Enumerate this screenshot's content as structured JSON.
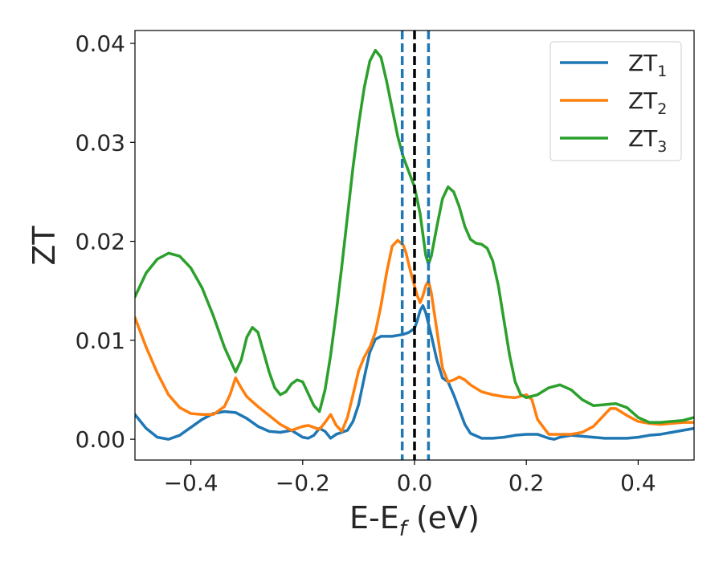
{
  "chart_data": {
    "type": "line",
    "xlabel": {
      "main": "E-E",
      "sub": "f",
      "suffix": " (eV)"
    },
    "ylabel": "ZT",
    "xlim": [
      -0.5,
      0.5
    ],
    "ylim": [
      -0.0021,
      0.0413
    ],
    "xticks": [
      -0.4,
      -0.2,
      0.0,
      0.2,
      0.4
    ],
    "xtick_labels": [
      "−0.4",
      "−0.2",
      "0.0",
      "0.2",
      "0.4"
    ],
    "yticks": [
      0.0,
      0.01,
      0.02,
      0.03,
      0.04
    ],
    "ytick_labels": [
      "0.00",
      "0.01",
      "0.02",
      "0.03",
      "0.04"
    ],
    "grid": false,
    "legend_position": "top-right",
    "vlines": [
      {
        "x": -0.022,
        "color": "#1f77b4",
        "style": "dashed"
      },
      {
        "x": 0.0,
        "color": "#000000",
        "style": "dashed"
      },
      {
        "x": 0.025,
        "color": "#1f77b4",
        "style": "dashed"
      }
    ],
    "series": [
      {
        "name": "ZT",
        "sub": "1",
        "color": "#1f77b4",
        "x": [
          -0.5,
          -0.48,
          -0.46,
          -0.44,
          -0.42,
          -0.4,
          -0.38,
          -0.36,
          -0.34,
          -0.32,
          -0.3,
          -0.28,
          -0.26,
          -0.24,
          -0.22,
          -0.2,
          -0.19,
          -0.18,
          -0.17,
          -0.16,
          -0.15,
          -0.14,
          -0.13,
          -0.12,
          -0.11,
          -0.1,
          -0.09,
          -0.08,
          -0.07,
          -0.06,
          -0.05,
          -0.04,
          -0.03,
          -0.02,
          -0.01,
          0.0,
          0.005,
          0.01,
          0.015,
          0.02,
          0.03,
          0.04,
          0.05,
          0.06,
          0.07,
          0.08,
          0.09,
          0.1,
          0.12,
          0.14,
          0.16,
          0.18,
          0.2,
          0.22,
          0.24,
          0.25,
          0.26,
          0.28,
          0.3,
          0.32,
          0.34,
          0.36,
          0.38,
          0.4,
          0.42,
          0.44,
          0.46,
          0.48,
          0.5
        ],
        "values": [
          0.0025,
          0.0011,
          0.0002,
          0.0,
          0.0004,
          0.0012,
          0.002,
          0.0026,
          0.0028,
          0.0027,
          0.0021,
          0.0013,
          0.0008,
          0.0007,
          0.0009,
          0.0002,
          0.0001,
          0.0004,
          0.0011,
          0.0008,
          0.0001,
          0.0005,
          0.0007,
          0.0009,
          0.0018,
          0.0035,
          0.0062,
          0.0088,
          0.0101,
          0.0104,
          0.0104,
          0.0104,
          0.0105,
          0.0106,
          0.0108,
          0.0112,
          0.012,
          0.013,
          0.0135,
          0.0128,
          0.0105,
          0.008,
          0.0062,
          0.0058,
          0.0045,
          0.003,
          0.0015,
          0.0006,
          0.0001,
          0.0001,
          0.0002,
          0.0004,
          0.0005,
          0.0005,
          0.0001,
          0.0,
          0.0002,
          0.0004,
          0.0003,
          0.0002,
          0.0001,
          0.0001,
          0.0001,
          0.0002,
          0.0004,
          0.0005,
          0.0007,
          0.0009,
          0.0011
        ]
      },
      {
        "name": "ZT",
        "sub": "2",
        "color": "#ff7f0e",
        "x": [
          -0.5,
          -0.48,
          -0.46,
          -0.44,
          -0.42,
          -0.4,
          -0.38,
          -0.36,
          -0.34,
          -0.33,
          -0.32,
          -0.31,
          -0.3,
          -0.28,
          -0.26,
          -0.24,
          -0.22,
          -0.2,
          -0.19,
          -0.18,
          -0.17,
          -0.16,
          -0.15,
          -0.14,
          -0.13,
          -0.12,
          -0.11,
          -0.1,
          -0.09,
          -0.08,
          -0.07,
          -0.06,
          -0.05,
          -0.04,
          -0.03,
          -0.02,
          -0.015,
          -0.01,
          -0.005,
          0.0,
          0.005,
          0.01,
          0.015,
          0.02,
          0.025,
          0.03,
          0.04,
          0.05,
          0.06,
          0.07,
          0.08,
          0.09,
          0.1,
          0.12,
          0.14,
          0.16,
          0.18,
          0.2,
          0.21,
          0.22,
          0.24,
          0.26,
          0.28,
          0.3,
          0.32,
          0.34,
          0.35,
          0.36,
          0.38,
          0.4,
          0.42,
          0.44,
          0.46,
          0.48,
          0.5
        ],
        "values": [
          0.0123,
          0.0093,
          0.0067,
          0.0045,
          0.0032,
          0.0026,
          0.0025,
          0.0025,
          0.0033,
          0.0045,
          0.0062,
          0.0052,
          0.0043,
          0.0033,
          0.0024,
          0.0015,
          0.0009,
          0.0013,
          0.0014,
          0.0012,
          0.001,
          0.0017,
          0.0025,
          0.0014,
          0.0008,
          0.0022,
          0.0045,
          0.0069,
          0.0083,
          0.0093,
          0.0108,
          0.0135,
          0.0168,
          0.0195,
          0.0201,
          0.0196,
          0.0188,
          0.0176,
          0.0165,
          0.0155,
          0.0145,
          0.0138,
          0.0145,
          0.0155,
          0.016,
          0.0148,
          0.011,
          0.0072,
          0.0058,
          0.006,
          0.0063,
          0.006,
          0.0055,
          0.0048,
          0.0045,
          0.0043,
          0.0042,
          0.0045,
          0.004,
          0.002,
          0.0005,
          0.0005,
          0.0005,
          0.0007,
          0.0013,
          0.0025,
          0.0031,
          0.0031,
          0.0024,
          0.0018,
          0.0016,
          0.0015,
          0.0016,
          0.0017,
          0.0017
        ]
      },
      {
        "name": "ZT",
        "sub": "3",
        "color": "#2ca02c",
        "x": [
          -0.5,
          -0.48,
          -0.46,
          -0.44,
          -0.42,
          -0.4,
          -0.38,
          -0.36,
          -0.34,
          -0.32,
          -0.31,
          -0.3,
          -0.29,
          -0.28,
          -0.27,
          -0.26,
          -0.25,
          -0.24,
          -0.23,
          -0.22,
          -0.21,
          -0.2,
          -0.19,
          -0.18,
          -0.17,
          -0.16,
          -0.15,
          -0.14,
          -0.13,
          -0.12,
          -0.11,
          -0.1,
          -0.09,
          -0.08,
          -0.07,
          -0.06,
          -0.05,
          -0.04,
          -0.03,
          -0.02,
          -0.01,
          0.0,
          0.01,
          0.02,
          0.025,
          0.03,
          0.04,
          0.05,
          0.06,
          0.07,
          0.08,
          0.09,
          0.1,
          0.11,
          0.12,
          0.13,
          0.14,
          0.15,
          0.16,
          0.17,
          0.18,
          0.19,
          0.2,
          0.22,
          0.24,
          0.26,
          0.28,
          0.3,
          0.32,
          0.34,
          0.36,
          0.38,
          0.4,
          0.42,
          0.44,
          0.46,
          0.48,
          0.5
        ],
        "values": [
          0.0144,
          0.0168,
          0.0182,
          0.0188,
          0.0185,
          0.0173,
          0.0153,
          0.0125,
          0.0093,
          0.0068,
          0.008,
          0.0103,
          0.0113,
          0.0108,
          0.0088,
          0.0068,
          0.0052,
          0.0045,
          0.0048,
          0.0056,
          0.006,
          0.0058,
          0.0046,
          0.0034,
          0.0028,
          0.005,
          0.0085,
          0.0128,
          0.0175,
          0.0225,
          0.0275,
          0.0318,
          0.0355,
          0.0382,
          0.0393,
          0.0386,
          0.0362,
          0.0334,
          0.0306,
          0.0285,
          0.027,
          0.0255,
          0.0228,
          0.0186,
          0.0177,
          0.0185,
          0.0215,
          0.0243,
          0.0255,
          0.025,
          0.0235,
          0.0215,
          0.0202,
          0.0198,
          0.0197,
          0.0193,
          0.018,
          0.0155,
          0.012,
          0.0085,
          0.0058,
          0.0045,
          0.0042,
          0.0045,
          0.0052,
          0.0055,
          0.005,
          0.004,
          0.0034,
          0.0035,
          0.0036,
          0.0032,
          0.0022,
          0.0017,
          0.0017,
          0.0018,
          0.0019,
          0.0022
        ]
      }
    ]
  }
}
